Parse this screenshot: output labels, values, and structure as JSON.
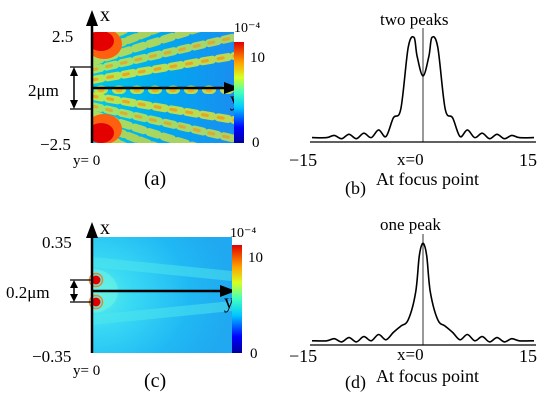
{
  "panel_a": {
    "label": "(a)",
    "axis_x": "x",
    "axis_y": "y",
    "x_top": "2.5",
    "x_bottom": "−2.5",
    "y_origin": "y= 0",
    "scale_label": "2μm",
    "colorbar": {
      "exponent": "10⁻⁴",
      "max": "10",
      "min": "0"
    }
  },
  "panel_b": {
    "label": "(b)",
    "title": "two peaks",
    "center_label": "x=0",
    "caption": "At focus point"
  },
  "panel_c": {
    "label": "(c)",
    "axis_x": "x",
    "axis_y": "y",
    "x_top": "0.35",
    "x_bottom": "−0.35",
    "y_origin": "y= 0",
    "scale_label": "0.2μm",
    "colorbar": {
      "exponent": "10⁻⁴",
      "max": "10",
      "min": "0"
    }
  },
  "panel_d": {
    "label": "(d)",
    "title": "one peak",
    "center_label": "x=0",
    "caption": "At focus point"
  },
  "chart_data": [
    {
      "type": "line",
      "panel": "b",
      "title": "two peaks",
      "xlim": [
        -15,
        15
      ],
      "x_ticks": [
        "−15",
        "15"
      ],
      "x": [
        -15,
        -13,
        -12,
        -11,
        -10,
        -9,
        -8,
        -7,
        -6,
        -5,
        -4,
        -3,
        -2,
        -1.2,
        -0.8,
        0,
        0.8,
        1.2,
        2,
        3,
        4,
        5,
        6,
        7,
        8,
        9,
        10,
        11,
        12,
        13,
        15
      ],
      "y": [
        0.04,
        0.04,
        0.06,
        0.03,
        0.07,
        0.03,
        0.08,
        0.04,
        0.11,
        0.05,
        0.22,
        0.3,
        0.86,
        0.95,
        0.78,
        0.6,
        0.78,
        0.95,
        0.86,
        0.3,
        0.22,
        0.05,
        0.11,
        0.04,
        0.08,
        0.03,
        0.07,
        0.03,
        0.06,
        0.04,
        0.04
      ]
    },
    {
      "type": "line",
      "panel": "d",
      "title": "one peak",
      "xlim": [
        -15,
        15
      ],
      "x_ticks": [
        "−15",
        "15"
      ],
      "x": [
        -15,
        -13,
        -12,
        -11,
        -10,
        -9,
        -8,
        -7,
        -6,
        -5,
        -4,
        -3,
        -2,
        -1,
        -0.5,
        0,
        0.5,
        1,
        2,
        3,
        4,
        5,
        6,
        7,
        8,
        9,
        10,
        11,
        12,
        13,
        15
      ],
      "y": [
        0.04,
        0.04,
        0.06,
        0.03,
        0.07,
        0.03,
        0.08,
        0.04,
        0.1,
        0.05,
        0.12,
        0.18,
        0.24,
        0.5,
        0.85,
        0.97,
        0.85,
        0.5,
        0.24,
        0.18,
        0.12,
        0.05,
        0.1,
        0.04,
        0.08,
        0.03,
        0.07,
        0.03,
        0.06,
        0.04,
        0.04
      ]
    }
  ]
}
